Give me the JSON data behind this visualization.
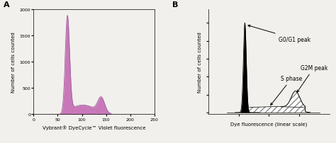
{
  "panel_A": {
    "label": "A",
    "xlabel": "Vybrant® DyeCycle™ Violet fluorescence",
    "ylabel": "Number of cells counted",
    "xlim": [
      0,
      250
    ],
    "ylim": [
      0,
      2000
    ],
    "xticks": [
      0,
      50,
      100,
      150,
      200,
      250
    ],
    "yticks": [
      0,
      500,
      1000,
      1500,
      2000
    ],
    "fill_color": "#c878b8",
    "edge_color": "#a060a0"
  },
  "panel_B": {
    "label": "B",
    "xlabel": "Dye fluorescence (linear scale)",
    "ylabel": "Number of cells counted",
    "annotation_g0g1": "G0/G1 peak",
    "annotation_s": "S phase",
    "annotation_g2m": "G2M peak"
  },
  "background_color": "#f2f0ed"
}
